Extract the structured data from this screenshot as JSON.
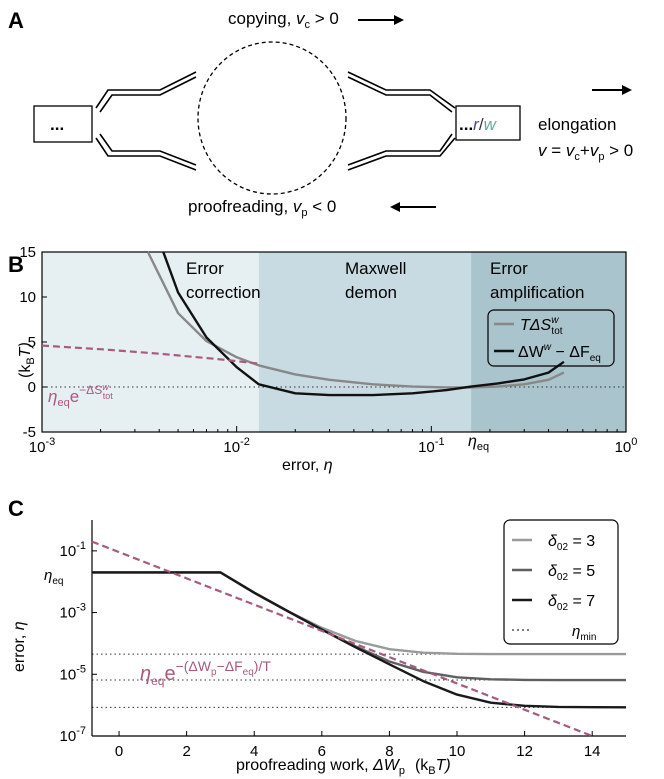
{
  "panel_a": {
    "label": "A",
    "copy_text": "copying, ",
    "copy_var": "v",
    "copy_sub": "c",
    "copy_cond": " > 0",
    "proof_text": "proofreading, ",
    "proof_var": "v",
    "proof_sub": "p",
    "proof_cond": " < 0",
    "left_box": "...",
    "right_box_dots": "...",
    "right_box_r": "r",
    "right_box_slash": "/",
    "right_box_w": "w",
    "elongation": "elongation",
    "eq_v": "v",
    "eq_eq": " = ",
    "eq_vc": "v",
    "eq_c": "c",
    "eq_plus": "+",
    "eq_vp": "v",
    "eq_p": "p",
    "eq_gt": " > 0",
    "colors": {
      "r": "#4a4a8a",
      "w": "#6aa6a0"
    }
  },
  "panel_b": {
    "label": "B",
    "regions": [
      "Error",
      "correction",
      "Maxwell",
      "demon",
      "Error",
      "amplification"
    ],
    "ylabel": "(k",
    "ylabel_sub": "B",
    "ylabel_end": "T)",
    "xlabel": "error, ",
    "xlabel_sym": "η",
    "eta_eq": "η",
    "eta_eq_sub": "eq",
    "annotation": "η",
    "annotation_sub": "eq",
    "annotation_e": "e",
    "annotation_exp": "−ΔS",
    "annotation_exp_sup": "w",
    "annotation_exp_sub": "tot",
    "legend": [
      {
        "pre": "TΔS",
        "sup": "w",
        "sub": "tot",
        "post": ""
      },
      {
        "pre": "ΔW",
        "sup": "w",
        "sub": "",
        "post": " − ΔF",
        "post_sub": "eq"
      }
    ],
    "region_colors": [
      "#e6eff2",
      "#c8dbe2",
      "#aac4cd"
    ]
  },
  "panel_c": {
    "label": "C",
    "ylabel": "error, ",
    "ylabel_sym": "η",
    "eta_eq": "η",
    "eta_eq_sub": "eq",
    "xlabel": "proofreading work, ",
    "xlabel_sym": "ΔW",
    "xlabel_sub": "p",
    "xlabel_unit": "(k",
    "xlabel_unit_sub": "B",
    "xlabel_unit_end": "T)",
    "annotation_base": "η",
    "annotation_base_sub": "eq",
    "annotation_e": "e",
    "annotation_exp": "−(ΔW",
    "annotation_exp_sub1": "p",
    "annotation_exp_mid": "−ΔF",
    "annotation_exp_sub2": "eq",
    "annotation_exp_end": ")/T",
    "legend": [
      {
        "sym": "δ",
        "sub": "02",
        "val": " = 3"
      },
      {
        "sym": "δ",
        "sub": "02",
        "val": " = 5"
      },
      {
        "sym": "δ",
        "sub": "02",
        "val": " = 7"
      },
      {
        "sym": "η",
        "sub": "min",
        "val": ""
      }
    ]
  },
  "chart_data": [
    {
      "type": "line",
      "panel": "B",
      "xscale": "log",
      "xlim": [
        0.001,
        1
      ],
      "ylim": [
        -5,
        15
      ],
      "xticks": [
        "10-3",
        "10-2",
        "10-1",
        "100"
      ],
      "yticks": [
        "-5",
        "0",
        "5",
        "10",
        "15"
      ],
      "region_bounds": [
        0.013,
        0.16
      ],
      "series": [
        {
          "name": "TΔS^w_tot",
          "color": "#888888",
          "x": [
            0.0035,
            0.005,
            0.007,
            0.01,
            0.013,
            0.02,
            0.03,
            0.05,
            0.08,
            0.12,
            0.16,
            0.22,
            0.3,
            0.4,
            0.48
          ],
          "y": [
            15,
            8.2,
            5.1,
            3.3,
            2.4,
            1.4,
            0.8,
            0.3,
            0.05,
            -0.05,
            -0.05,
            0.05,
            0.3,
            0.8,
            1.6
          ]
        },
        {
          "name": "ΔW^w − ΔF_eq",
          "color": "#111111",
          "x": [
            0.0042,
            0.005,
            0.007,
            0.01,
            0.013,
            0.02,
            0.03,
            0.05,
            0.08,
            0.12,
            0.16,
            0.22,
            0.3,
            0.4,
            0.48
          ],
          "y": [
            15,
            10.5,
            5.5,
            2.2,
            0.3,
            -0.7,
            -0.9,
            -0.9,
            -0.7,
            -0.35,
            0.05,
            0.4,
            0.85,
            1.6,
            2.8
          ]
        },
        {
          "name": "η_eq e^(−ΔS^w_tot)",
          "color": "#a85a80",
          "dashed": true,
          "x": [
            0.001,
            0.002,
            0.004,
            0.008,
            0.013
          ],
          "y": [
            4.6,
            4.2,
            3.7,
            3.1,
            2.6
          ]
        }
      ]
    },
    {
      "type": "line",
      "panel": "C",
      "yscale": "log",
      "xlim": [
        -0.8,
        15
      ],
      "ylim": [
        1e-07,
        1
      ],
      "xticks": [
        "0",
        "2",
        "4",
        "6",
        "8",
        "10",
        "12",
        "14"
      ],
      "yticks": [
        "10-1",
        "10-3",
        "10-5",
        "10-7"
      ],
      "eta_eq": 0.02,
      "series": [
        {
          "name": "δ02 = 3",
          "color": "#9a9a9a",
          "x": [
            -0.8,
            3,
            4,
            5,
            6,
            7,
            8,
            9,
            10,
            11,
            12,
            13,
            14,
            15
          ],
          "y": [
            0.02,
            0.02,
            0.0044,
            0.0011,
            0.00032,
            0.00012,
            6.5e-05,
            5e-05,
            4.6e-05,
            4.5e-05,
            4.5e-05,
            4.5e-05,
            4.5e-05,
            4.5e-05
          ]
        },
        {
          "name": "δ02 = 5",
          "color": "#5f5f5f",
          "x": [
            -0.8,
            3,
            4,
            5,
            6,
            7,
            8,
            9,
            10,
            11,
            12,
            13,
            14,
            15
          ],
          "y": [
            0.02,
            0.02,
            0.0044,
            0.0011,
            0.00028,
            8e-05,
            2.6e-05,
            1.2e-05,
            8e-06,
            6.9e-06,
            6.6e-06,
            6.5e-06,
            6.5e-06,
            6.5e-06
          ]
        },
        {
          "name": "δ02 = 7",
          "color": "#1a1a1a",
          "x": [
            -0.8,
            3,
            4,
            5,
            6,
            7,
            8,
            9,
            10,
            11,
            12,
            13,
            14,
            15
          ],
          "y": [
            0.02,
            0.02,
            0.0044,
            0.0011,
            0.00028,
            7.5e-05,
            2.1e-05,
            6e-06,
            2.2e-06,
            1.2e-06,
            9.5e-07,
            8.8e-07,
            8.6e-07,
            8.5e-07
          ]
        },
        {
          "name": "η_eq e^(−(ΔWp−ΔFeq)/T)",
          "color": "#a85a80",
          "dashed": true,
          "x": [
            -0.8,
            14
          ],
          "y": [
            0.2,
            1e-07
          ]
        }
      ],
      "hlines": [
        {
          "name": "η_min δ02=3",
          "y": 4.5e-05
        },
        {
          "name": "η_min δ02=5",
          "y": 6.5e-06
        },
        {
          "name": "η_min δ02=7",
          "y": 8.5e-07
        }
      ]
    }
  ]
}
